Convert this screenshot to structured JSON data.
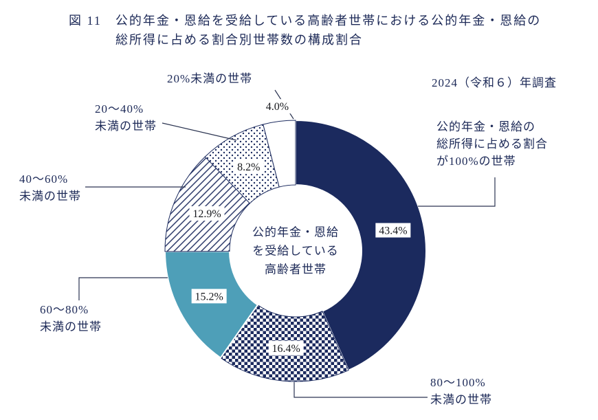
{
  "figure": {
    "title1": "図 11　公的年金・恩給を受給している高齢者世帯における公的年金・恩給の",
    "title2": "総所得に占める割合別世帯数の構成割合",
    "survey_note": "2024（令和６）年調査",
    "center_label": "公的年金・恩給\nを受給している\n高齢者世帯",
    "labels": {
      "under20": "20%未満の世帯",
      "l20_40": "20～40%\n未満の世帯",
      "l40_60": "40～60%\n未満の世帯",
      "l60_80": "60～80%\n未満の世帯",
      "l80_100": "80～100%\n未満の世帯",
      "l100": "公的年金・恩給の\n総所得に占める割合\nが100%の世帯"
    }
  },
  "chart_data": {
    "type": "pie",
    "donut": true,
    "title": "公的年金・恩給を受給している高齢者世帯における公的年金・恩給の総所得に占める割合別世帯数の構成割合",
    "annotation": "2024（令和６）年調査",
    "center_label": "公的年金・恩給を受給している高齢者世帯",
    "start_angle_deg": 0,
    "direction": "clockwise",
    "categories": [
      "公的年金・恩給の総所得に占める割合が100%の世帯",
      "80～100%未満の世帯",
      "60～80%未満の世帯",
      "40～60%未満の世帯",
      "20～40%未満の世帯",
      "20%未満の世帯"
    ],
    "values": [
      43.4,
      16.4,
      15.2,
      12.9,
      8.2,
      4.0
    ],
    "value_labels": [
      "43.4%",
      "16.4%",
      "15.2%",
      "12.9%",
      "8.2%",
      "4.0%"
    ],
    "styles": [
      "solid-navy",
      "checker",
      "solid-teal",
      "diagonal-hatch",
      "dots",
      "white"
    ],
    "legend_position": "outside-callouts",
    "colors": {
      "navy": "#1b2a5e",
      "teal": "#4e9fb8",
      "white": "#ffffff",
      "text": "#1c2957"
    }
  }
}
